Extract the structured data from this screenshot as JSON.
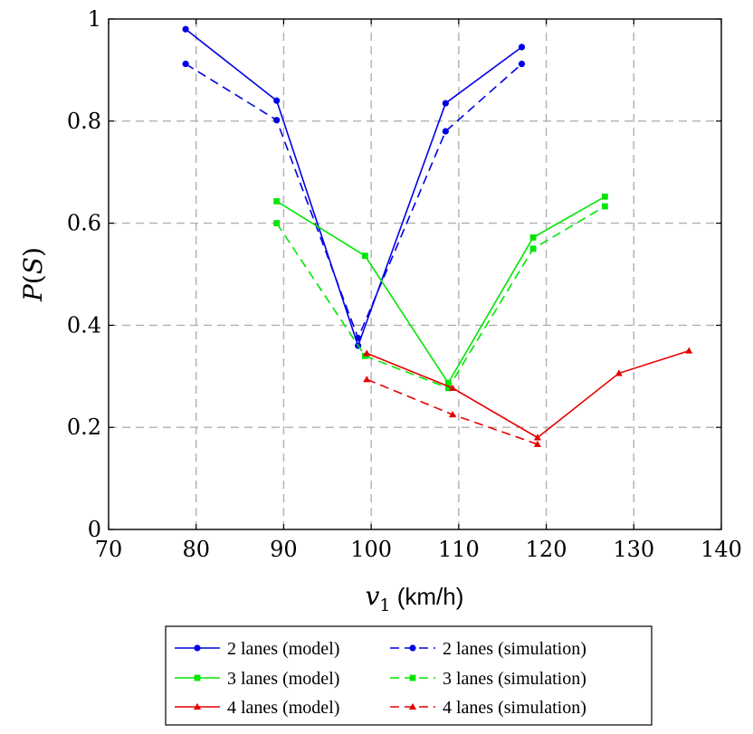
{
  "chart_data": {
    "type": "line",
    "xlabel": "v₁ (km/h)",
    "ylabel": "P(S)",
    "xlim": [
      70,
      140
    ],
    "ylim": [
      0,
      1
    ],
    "xticks": [
      70,
      80,
      90,
      100,
      110,
      120,
      130,
      140
    ],
    "yticks": [
      0,
      0.2,
      0.4,
      0.6,
      0.8,
      1
    ],
    "ytick_labels": [
      "0",
      "0.2",
      "0.4",
      "0.6",
      "0.8",
      "1"
    ],
    "grid": true,
    "legend_position": "bottom",
    "series": [
      {
        "name": "2 lanes (model)",
        "color": "#0000e6",
        "dash": "solid",
        "marker": "circle",
        "x": [
          78.8,
          89.2,
          98.5,
          108.5,
          117.2
        ],
        "y": [
          0.98,
          0.84,
          0.36,
          0.835,
          0.945
        ]
      },
      {
        "name": "2 lanes (simulation)",
        "color": "#0000e6",
        "dash": "dashed",
        "marker": "circle",
        "x": [
          78.8,
          89.2,
          98.5,
          108.5,
          117.2
        ],
        "y": [
          0.912,
          0.802,
          0.375,
          0.78,
          0.912
        ]
      },
      {
        "name": "3 lanes (model)",
        "color": "#00e600",
        "dash": "solid",
        "marker": "square",
        "x": [
          89.2,
          99.3,
          108.8,
          118.5,
          126.7
        ],
        "y": [
          0.643,
          0.536,
          0.287,
          0.572,
          0.652
        ]
      },
      {
        "name": "3 lanes (simulation)",
        "color": "#00e600",
        "dash": "dashed",
        "marker": "square",
        "x": [
          89.2,
          99.3,
          108.8,
          118.5,
          126.7
        ],
        "y": [
          0.6,
          0.34,
          0.277,
          0.55,
          0.633
        ]
      },
      {
        "name": "4 lanes (model)",
        "color": "#e60000",
        "dash": "solid",
        "marker": "triangle",
        "x": [
          99.5,
          109.3,
          119.0,
          128.3,
          136.3
        ],
        "y": [
          0.345,
          0.277,
          0.18,
          0.306,
          0.35
        ]
      },
      {
        "name": "4 lanes (simulation)",
        "color": "#e60000",
        "dash": "dashed",
        "marker": "triangle",
        "x": [
          99.5,
          109.3,
          119.0
        ],
        "y": [
          0.294,
          0.225,
          0.167
        ]
      }
    ]
  }
}
